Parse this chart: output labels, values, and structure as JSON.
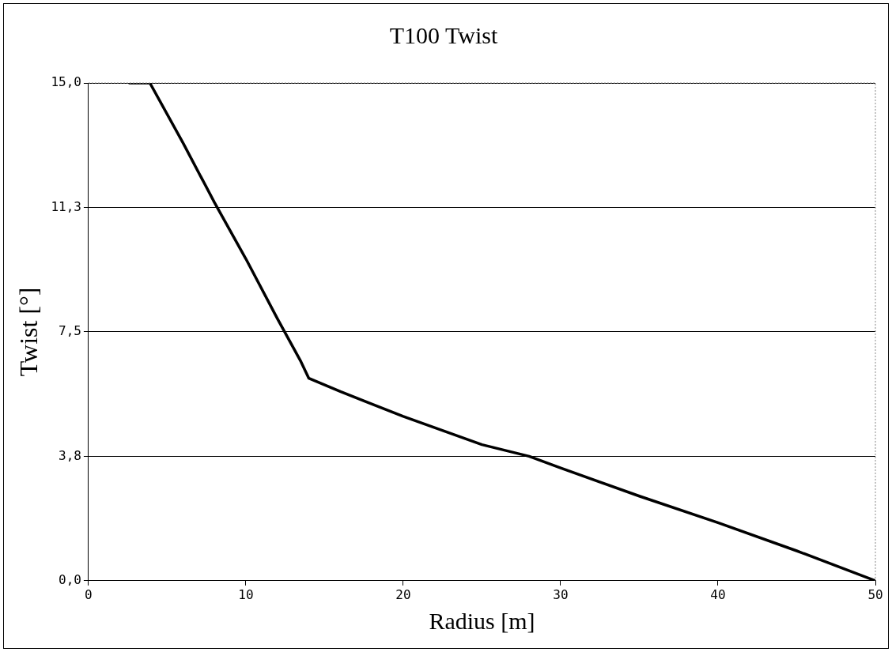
{
  "chart_data": {
    "type": "line",
    "title": "T100 Twist",
    "xlabel": "Radius [m]",
    "ylabel": "Twist [°]",
    "series": [
      {
        "color": "#000000",
        "x": [
          2.6,
          3.9,
          6,
          8,
          10,
          12,
          13.5,
          14,
          16,
          20,
          25,
          28,
          30,
          35,
          40,
          45,
          50
        ],
        "values": [
          15,
          15,
          13.2,
          11.4,
          9.7,
          7.9,
          6.6,
          6.1,
          5.7,
          4.95,
          4.1,
          3.75,
          3.4,
          2.55,
          1.75,
          0.9,
          0
        ]
      }
    ],
    "xlim": [
      0,
      50
    ],
    "xticks": [
      0,
      10,
      20,
      30,
      40,
      50
    ],
    "ylim": [
      0,
      15
    ],
    "yticks": [
      {
        "value": 0,
        "label": "0,0"
      },
      {
        "value": 3.75,
        "label": "3,8"
      },
      {
        "value": 7.5,
        "label": "7,5"
      },
      {
        "value": 11.25,
        "label": "11,3"
      },
      {
        "value": 15,
        "label": "15,0"
      }
    ],
    "grid": "y",
    "legend": false,
    "marker": "none",
    "line_style": "solid"
  }
}
